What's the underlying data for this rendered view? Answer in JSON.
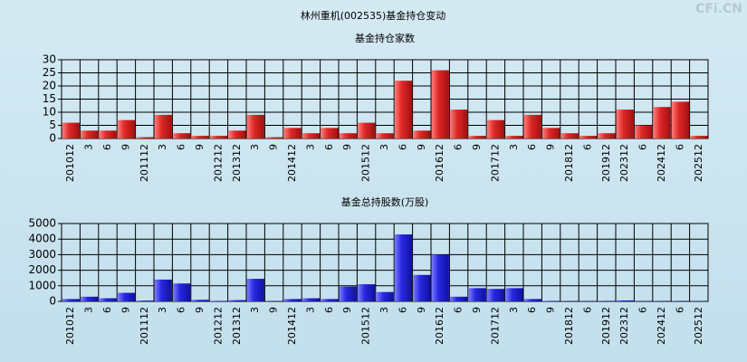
{
  "title": "林州重机(002535)基金持仓变动",
  "watermark": "CFi.CN",
  "chart_data": [
    {
      "type": "bar",
      "title": "基金持仓家数",
      "color": "#e02828",
      "categories": [
        "201012",
        "3",
        "6",
        "9",
        "201112",
        "3",
        "6",
        "9",
        "201212",
        "201312",
        "3",
        "9",
        "201412",
        "3",
        "6",
        "9",
        "201512",
        "3",
        "6",
        "9",
        "201612",
        "6",
        "9",
        "201712",
        "3",
        "6",
        "9",
        "201812",
        "6",
        "201912",
        "202312",
        "6",
        "202412",
        "6",
        "202512"
      ],
      "values": [
        6,
        3,
        3,
        7,
        0.5,
        9,
        2,
        1,
        1,
        3,
        9,
        0.5,
        4,
        2,
        4,
        2,
        6,
        2,
        22,
        3,
        26,
        11,
        1,
        7,
        1,
        9,
        4,
        2,
        1,
        2,
        11,
        5,
        12,
        14,
        1
      ],
      "ylim": [
        0,
        30
      ],
      "yticks": [
        0,
        5,
        10,
        15,
        20,
        25,
        30
      ],
      "grid": true
    },
    {
      "type": "bar",
      "title": "基金总持股数(万股)",
      "color": "#2828e0",
      "categories": [
        "201012",
        "3",
        "6",
        "9",
        "201112",
        "3",
        "6",
        "9",
        "201212",
        "201312",
        "3",
        "9",
        "201412",
        "3",
        "6",
        "9",
        "201512",
        "3",
        "6",
        "9",
        "201612",
        "6",
        "9",
        "201712",
        "3",
        "6",
        "9",
        "201812",
        "6",
        "201912",
        "202312",
        "6",
        "202412",
        "6",
        "202512"
      ],
      "values": [
        150,
        300,
        200,
        550,
        50,
        1400,
        1150,
        100,
        30,
        80,
        1450,
        20,
        150,
        200,
        150,
        950,
        1100,
        600,
        4300,
        1700,
        3000,
        300,
        850,
        800,
        850,
        150,
        30,
        20,
        20,
        20,
        60,
        20,
        20,
        20,
        20
      ],
      "ylim": [
        0,
        5000
      ],
      "yticks": [
        0,
        1000,
        2000,
        3000,
        4000,
        5000
      ],
      "grid": true
    }
  ]
}
